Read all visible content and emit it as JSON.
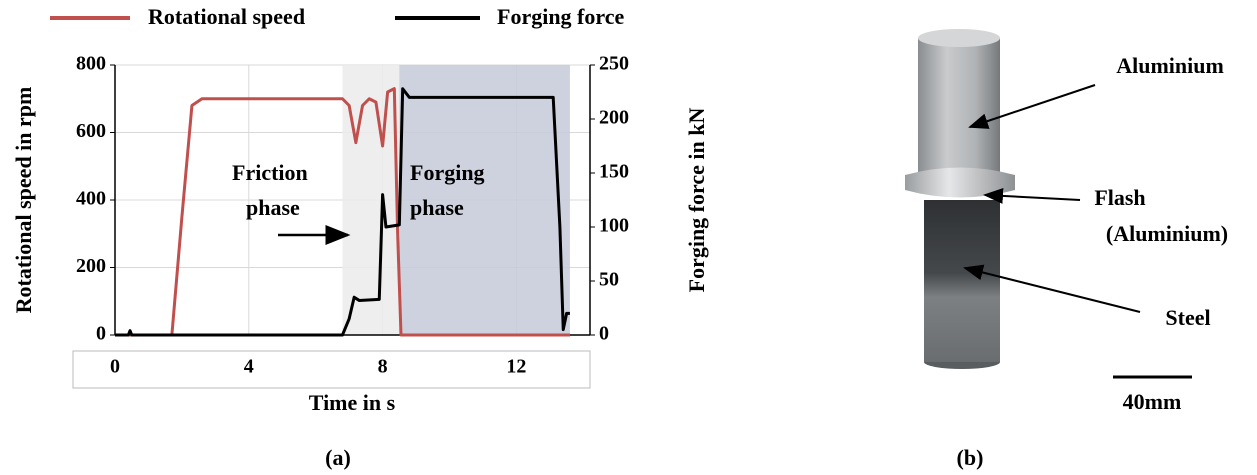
{
  "chart_data": {
    "type": "line",
    "xlabel": "Time in s",
    "ylabel": "Rotational speed in rpm",
    "y2label": "Forging force in kN",
    "xlim": [
      0,
      14.2
    ],
    "xticks": [
      0,
      4,
      8,
      12
    ],
    "ylim": [
      0,
      800
    ],
    "yticks": [
      0,
      200,
      400,
      600,
      800
    ],
    "y2lim": [
      0,
      250
    ],
    "y2ticks": [
      0,
      50,
      100,
      150,
      200,
      250
    ],
    "grid": true,
    "regions": [
      {
        "label": [
          "Friction",
          "phase"
        ],
        "xrange": [
          6.8,
          8.5
        ],
        "color": "#ebebeb"
      },
      {
        "label": [
          "Forging",
          "phase"
        ],
        "xrange": [
          8.5,
          13.6
        ],
        "color": "#c5cad9"
      }
    ],
    "series": [
      {
        "name": "Rotational speed",
        "color": "#c0504d",
        "x": [
          0,
          1.7,
          2.0,
          2.3,
          2.6,
          6.8,
          7.0,
          7.2,
          7.4,
          7.6,
          7.8,
          8.0,
          8.15,
          8.35,
          8.45,
          8.55,
          13.6
        ],
        "values": [
          0,
          0,
          350,
          680,
          700,
          700,
          680,
          570,
          680,
          700,
          690,
          560,
          720,
          730,
          300,
          0,
          0
        ]
      },
      {
        "name": "Forging force",
        "color": "#000000",
        "axis": "y2",
        "x": [
          0,
          0.4,
          0.45,
          0.5,
          6.8,
          7.0,
          7.15,
          7.3,
          7.9,
          8.0,
          8.1,
          8.5,
          8.6,
          8.8,
          13.1,
          13.3,
          13.4,
          13.5,
          13.6
        ],
        "values": [
          0,
          0,
          4,
          0,
          0,
          15,
          35,
          32,
          33,
          130,
          100,
          102,
          228,
          220,
          220,
          100,
          5,
          20,
          20
        ]
      }
    ]
  },
  "panel_labels": [
    "(a)",
    "(b)"
  ],
  "photo": {
    "labels": [
      "Aluminium",
      "Flash",
      "(Aluminium)",
      "Steel"
    ],
    "scale_bar": "40mm"
  }
}
